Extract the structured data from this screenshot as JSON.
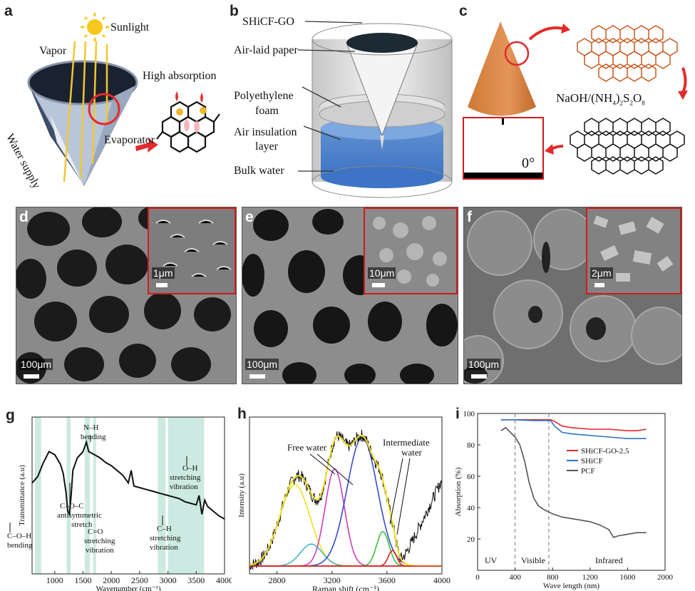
{
  "panels": {
    "a": {
      "letter": "a",
      "sunlight": "Sunlight",
      "vapor": "Vapor",
      "high_absorption": "High absorption",
      "water_supply": "Water supply",
      "evaporator": "Evaporator"
    },
    "b": {
      "letter": "b",
      "labels": [
        "SHiCF-GO",
        "Air-laid paper",
        "Polyethylene",
        "foam",
        "Air insulation",
        "layer",
        "Bulk water"
      ]
    },
    "c": {
      "letter": "c",
      "reagent": "NaOH/(NH",
      "reagent_sub4": "4",
      "reagent_mid": ")",
      "reagent_sub2": "2",
      "reagent_s": "S",
      "reagent_sub2b": "2",
      "reagent_o": "O",
      "reagent_sub8": "8",
      "contact_angle": "0°"
    },
    "d": {
      "letter": "d",
      "scale_main": "100μm",
      "scale_inset": "1μm"
    },
    "e": {
      "letter": "e",
      "scale_main": "100μm",
      "scale_inset": "10μm"
    },
    "f": {
      "letter": "f",
      "scale_main": "100μm",
      "scale_inset": "2μm"
    }
  },
  "chart_data": [
    {
      "type": "line",
      "panel": "g",
      "xlabel": "Wavenumber (cm⁻¹)",
      "ylabel": "Transmittance (a.u)",
      "xlim": [
        600,
        4000
      ],
      "xticks": [
        1000,
        1500,
        2000,
        2500,
        3000,
        3500,
        4000
      ],
      "series": [
        {
          "x": [
            600,
            700,
            800,
            900,
            1000,
            1100,
            1150,
            1200,
            1230,
            1260,
            1290,
            1320,
            1400,
            1500,
            1560,
            1600,
            1700,
            1800,
            1900,
            2000,
            2100,
            2200,
            2300,
            2350,
            2400,
            2500,
            2600,
            2700,
            2800,
            2900,
            3000,
            3100,
            3200,
            3300,
            3400,
            3500,
            3550,
            3600,
            3650,
            3700,
            3800,
            3900,
            4000
          ],
          "y": [
            0.58,
            0.62,
            0.71,
            0.78,
            0.76,
            0.7,
            0.64,
            0.52,
            0.4,
            0.38,
            0.5,
            0.66,
            0.74,
            0.78,
            0.84,
            0.78,
            0.76,
            0.74,
            0.71,
            0.69,
            0.66,
            0.63,
            0.58,
            0.66,
            0.56,
            0.55,
            0.54,
            0.53,
            0.52,
            0.51,
            0.5,
            0.49,
            0.48,
            0.46,
            0.45,
            0.44,
            0.5,
            0.38,
            0.47,
            0.43,
            0.4,
            0.37,
            0.35
          ]
        }
      ],
      "bands": [
        [
          650,
          760
        ],
        [
          1210,
          1280
        ],
        [
          1530,
          1620
        ],
        [
          1680,
          1730
        ],
        [
          2820,
          2960
        ],
        [
          3000,
          3640
        ]
      ],
      "annotations": [
        "N–H",
        "bending",
        "C–O–C",
        "antisymmetric",
        "stretch",
        "C=O",
        "stretching",
        "vibration",
        "C–H",
        "stretching",
        "vibration",
        "O–H",
        "stretching",
        "vibration",
        "C–O–H",
        "bending"
      ]
    },
    {
      "type": "line",
      "panel": "h",
      "xlabel": "Raman shift (cm⁻¹)",
      "ylabel": "Intensity (a.u)",
      "xlim": [
        2600,
        4000
      ],
      "xticks": [
        2800,
        3200,
        3600,
        4000
      ],
      "annotations": [
        "Free water",
        "Intermediate",
        "water"
      ],
      "components": [
        {
          "color": "#f0e020",
          "center": 2930,
          "height": 0.52,
          "width": 110
        },
        {
          "color": "#44b8c8",
          "center": 3050,
          "height": 0.14,
          "width": 80
        },
        {
          "color": "#cc3fb8",
          "center": 3220,
          "height": 0.62,
          "width": 70
        },
        {
          "color": "#3a4ad0",
          "center": 3420,
          "height": 0.82,
          "width": 110
        },
        {
          "color": "#3cc23c",
          "center": 3570,
          "height": 0.22,
          "width": 45
        },
        {
          "color": "#e02020",
          "center": 3640,
          "height": 0.1,
          "width": 30
        }
      ]
    },
    {
      "type": "line",
      "panel": "i",
      "xlabel": "Wave length (nm)",
      "ylabel": "Absorption (%)",
      "xlim": [
        0,
        2000
      ],
      "ylim": [
        0,
        100
      ],
      "xticks": [
        0,
        400,
        800,
        1200,
        1600,
        2000
      ],
      "yticks": [
        20,
        40,
        60,
        80,
        100
      ],
      "regions": [
        "UV",
        "Visible",
        "Infrared"
      ],
      "dividers": [
        400,
        760
      ],
      "series": [
        {
          "name": "SHiCF-GO-2.5",
          "color": "#e8262b",
          "x": [
            250,
            400,
            600,
            780,
            820,
            900,
            1000,
            1200,
            1400,
            1600,
            1700,
            1800
          ],
          "y": [
            96,
            96,
            96,
            96,
            95,
            92,
            91,
            90,
            90,
            89,
            89,
            90
          ]
        },
        {
          "name": "SHiCF",
          "color": "#2f74c9",
          "x": [
            250,
            400,
            600,
            780,
            820,
            900,
            1000,
            1200,
            1400,
            1600,
            1700,
            1800
          ],
          "y": [
            96,
            96,
            95.5,
            95.5,
            92,
            88,
            87,
            86,
            85,
            84,
            84,
            84
          ]
        },
        {
          "name": "PCF",
          "color": "#555555",
          "x": [
            250,
            300,
            350,
            400,
            450,
            500,
            550,
            600,
            650,
            700,
            800,
            900,
            1000,
            1100,
            1200,
            1300,
            1400,
            1450,
            1500,
            1600,
            1700,
            1800
          ],
          "y": [
            89,
            91,
            88,
            85,
            80,
            70,
            56,
            46,
            41,
            39,
            36,
            34,
            33,
            32,
            31,
            29,
            26,
            21,
            22,
            23,
            24,
            24
          ]
        }
      ]
    }
  ]
}
